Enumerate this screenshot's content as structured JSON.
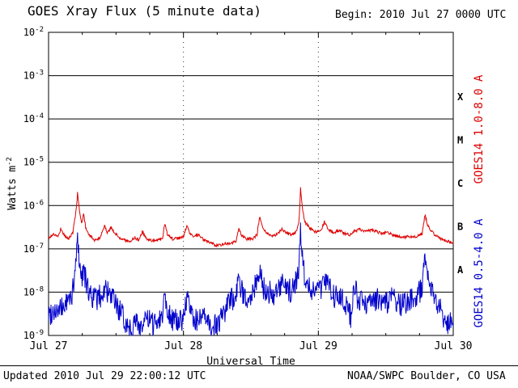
{
  "header": {
    "title": "GOES Xray Flux (5 minute data)",
    "begin": "Begin:  2010 Jul 27 0000 UTC"
  },
  "footer": {
    "updated": "Updated 2010 Jul 29 22:00:12 UTC",
    "credit": "NOAA/SWPC Boulder, CO USA"
  },
  "y_axis": {
    "label_base": "Watts m",
    "label_exp": "-2"
  },
  "x_axis": {
    "label": "Universal Time"
  },
  "right_labels": {
    "red": "GOES14 1.0-8.0 A",
    "blue": "GOES14 0.5-4.0 A"
  },
  "colors": {
    "red": "#dd0000",
    "blue": "#0000cc",
    "axis": "#000000",
    "background": "#ffffff"
  },
  "chart_data": {
    "type": "line",
    "title": "GOES Xray Flux (5 minute data)",
    "xlabel": "Universal Time",
    "ylabel": "Watts m^-2",
    "y_scale": "log",
    "ylim": [
      1e-09,
      0.01
    ],
    "xlim_days": [
      0,
      3
    ],
    "x_start": "2010 Jul 27 0000 UTC",
    "x_ticks": [
      {
        "t": 0,
        "label": "Jul 27"
      },
      {
        "t": 1,
        "label": "Jul 28"
      },
      {
        "t": 2,
        "label": "Jul 29"
      },
      {
        "t": 3,
        "label": "Jul 30"
      }
    ],
    "y_tick_exponents": [
      -2,
      -3,
      -4,
      -5,
      -6,
      -7,
      -8,
      -9
    ],
    "flare_class_bands": [
      {
        "label": "X",
        "flux": 0.000316
      },
      {
        "label": "M",
        "flux": 3.16e-05
      },
      {
        "label": "C",
        "flux": 3.16e-06
      },
      {
        "label": "B",
        "flux": 3.16e-07
      },
      {
        "label": "A",
        "flux": 3.16e-08
      }
    ],
    "grid": {
      "h_lines": "solid black at each decade",
      "v_lines": "dotted at Jul 28 and Jul 29"
    },
    "legend_position": "right-rotated",
    "series": [
      {
        "name": "GOES14 1.0-8.0 A",
        "color": "#dd0000",
        "cadence_days": 0.0035,
        "noise_decades": 0.035,
        "points": [
          [
            0.0,
            1.8e-07
          ],
          [
            0.04,
            2.2e-07
          ],
          [
            0.07,
            1.9e-07
          ],
          [
            0.09,
            2.9e-07
          ],
          [
            0.12,
            2e-07
          ],
          [
            0.15,
            1.7e-07
          ],
          [
            0.18,
            2.4e-07
          ],
          [
            0.205,
            8e-07
          ],
          [
            0.215,
            2e-06
          ],
          [
            0.23,
            7e-07
          ],
          [
            0.245,
            3.8e-07
          ],
          [
            0.26,
            6.5e-07
          ],
          [
            0.275,
            3.2e-07
          ],
          [
            0.3,
            2.1e-07
          ],
          [
            0.34,
            1.6e-07
          ],
          [
            0.38,
            1.7e-07
          ],
          [
            0.415,
            3.6e-07
          ],
          [
            0.435,
            2.4e-07
          ],
          [
            0.465,
            3.1e-07
          ],
          [
            0.49,
            2.3e-07
          ],
          [
            0.52,
            1.9e-07
          ],
          [
            0.56,
            1.6e-07
          ],
          [
            0.6,
            1.5e-07
          ],
          [
            0.64,
            1.8e-07
          ],
          [
            0.67,
            1.6e-07
          ],
          [
            0.695,
            2.5e-07
          ],
          [
            0.72,
            1.8e-07
          ],
          [
            0.76,
            1.55e-07
          ],
          [
            0.8,
            1.6e-07
          ],
          [
            0.845,
            1.7e-07
          ],
          [
            0.862,
            3.9e-07
          ],
          [
            0.88,
            2.2e-07
          ],
          [
            0.92,
            1.7e-07
          ],
          [
            0.96,
            1.75e-07
          ],
          [
            1.0,
            1.9e-07
          ],
          [
            1.025,
            3.4e-07
          ],
          [
            1.05,
            2.2e-07
          ],
          [
            1.08,
            1.9e-07
          ],
          [
            1.11,
            2.1e-07
          ],
          [
            1.15,
            1.6e-07
          ],
          [
            1.19,
            1.4e-07
          ],
          [
            1.23,
            1.25e-07
          ],
          [
            1.27,
            1.2e-07
          ],
          [
            1.31,
            1.35e-07
          ],
          [
            1.35,
            1.3e-07
          ],
          [
            1.39,
            1.5e-07
          ],
          [
            1.41,
            3e-07
          ],
          [
            1.43,
            2e-07
          ],
          [
            1.47,
            1.7e-07
          ],
          [
            1.51,
            1.7e-07
          ],
          [
            1.545,
            2.1e-07
          ],
          [
            1.565,
            5.5e-07
          ],
          [
            1.585,
            3.1e-07
          ],
          [
            1.62,
            2.2e-07
          ],
          [
            1.66,
            2e-07
          ],
          [
            1.7,
            2.2e-07
          ],
          [
            1.73,
            2.9e-07
          ],
          [
            1.76,
            2.3e-07
          ],
          [
            1.8,
            2.1e-07
          ],
          [
            1.84,
            2.5e-07
          ],
          [
            1.858,
            5e-07
          ],
          [
            1.868,
            2.6e-06
          ],
          [
            1.882,
            8e-07
          ],
          [
            1.9,
            4.2e-07
          ],
          [
            1.94,
            2.9e-07
          ],
          [
            1.98,
            2.4e-07
          ],
          [
            2.02,
            2.7e-07
          ],
          [
            2.045,
            4.2e-07
          ],
          [
            2.07,
            3e-07
          ],
          [
            2.11,
            2.3e-07
          ],
          [
            2.15,
            2.7e-07
          ],
          [
            2.19,
            2.3e-07
          ],
          [
            2.23,
            2.1e-07
          ],
          [
            2.27,
            2.6e-07
          ],
          [
            2.31,
            2.8e-07
          ],
          [
            2.35,
            2.5e-07
          ],
          [
            2.39,
            2.7e-07
          ],
          [
            2.43,
            2.5e-07
          ],
          [
            2.47,
            2.3e-07
          ],
          [
            2.51,
            2.45e-07
          ],
          [
            2.55,
            2.1e-07
          ],
          [
            2.59,
            1.95e-07
          ],
          [
            2.63,
            1.85e-07
          ],
          [
            2.67,
            1.95e-07
          ],
          [
            2.71,
            1.85e-07
          ],
          [
            2.74,
            2e-07
          ],
          [
            2.77,
            2.3e-07
          ],
          [
            2.79,
            6.2e-07
          ],
          [
            2.81,
            3.6e-07
          ],
          [
            2.84,
            2.5e-07
          ],
          [
            2.88,
            1.9e-07
          ],
          [
            2.92,
            1.65e-07
          ],
          [
            2.96,
            1.5e-07
          ],
          [
            3.0,
            1.4e-07
          ]
        ]
      },
      {
        "name": "GOES14 0.5-4.0 A",
        "color": "#0000cc",
        "cadence_days": 0.0035,
        "noise_decades": 0.28,
        "points": [
          [
            0.0,
            3e-09
          ],
          [
            0.04,
            4e-09
          ],
          [
            0.08,
            3.5e-09
          ],
          [
            0.12,
            5e-09
          ],
          [
            0.16,
            7e-09
          ],
          [
            0.19,
            1.4e-08
          ],
          [
            0.205,
            7e-08
          ],
          [
            0.215,
            1.7e-07
          ],
          [
            0.23,
            5e-08
          ],
          [
            0.245,
            2e-08
          ],
          [
            0.26,
            4e-08
          ],
          [
            0.28,
            1.4e-08
          ],
          [
            0.32,
            8e-09
          ],
          [
            0.36,
            7e-09
          ],
          [
            0.4,
            9e-09
          ],
          [
            0.42,
            1.3e-08
          ],
          [
            0.45,
            8e-09
          ],
          [
            0.49,
            6e-09
          ],
          [
            0.53,
            3.5e-09
          ],
          [
            0.57,
            2e-09
          ],
          [
            0.61,
            1.5e-09
          ],
          [
            0.65,
            2e-09
          ],
          [
            0.69,
            1.6e-09
          ],
          [
            0.73,
            2.4e-09
          ],
          [
            0.77,
            1.8e-09
          ],
          [
            0.81,
            2.4e-09
          ],
          [
            0.845,
            3e-09
          ],
          [
            0.862,
            1.1e-08
          ],
          [
            0.88,
            4e-09
          ],
          [
            0.92,
            2.4e-09
          ],
          [
            0.96,
            2e-09
          ],
          [
            1.0,
            2.6e-09
          ],
          [
            1.025,
            7e-09
          ],
          [
            1.06,
            3e-09
          ],
          [
            1.1,
            2.2e-09
          ],
          [
            1.14,
            2.6e-09
          ],
          [
            1.18,
            1.9e-09
          ],
          [
            1.22,
            1.6e-09
          ],
          [
            1.26,
            2e-09
          ],
          [
            1.3,
            3.2e-09
          ],
          [
            1.34,
            6e-09
          ],
          [
            1.38,
            8e-09
          ],
          [
            1.41,
            1.6e-08
          ],
          [
            1.44,
            9e-09
          ],
          [
            1.48,
            8e-09
          ],
          [
            1.52,
            1.1e-08
          ],
          [
            1.565,
            3.2e-08
          ],
          [
            1.59,
            1.3e-08
          ],
          [
            1.63,
            1e-08
          ],
          [
            1.67,
            9e-09
          ],
          [
            1.71,
            1.1e-08
          ],
          [
            1.73,
            1.5e-08
          ],
          [
            1.77,
            1e-08
          ],
          [
            1.81,
            1.2e-08
          ],
          [
            1.85,
            2.2e-08
          ],
          [
            1.868,
            2.9e-07
          ],
          [
            1.882,
            6e-08
          ],
          [
            1.9,
            2.2e-08
          ],
          [
            1.94,
            1.3e-08
          ],
          [
            1.98,
            1e-08
          ],
          [
            2.02,
            1.3e-08
          ],
          [
            2.045,
            2.6e-08
          ],
          [
            2.08,
            1.2e-08
          ],
          [
            2.12,
            8e-09
          ],
          [
            2.16,
            1e-08
          ],
          [
            2.2,
            6e-09
          ],
          [
            2.24,
            2.6e-09
          ],
          [
            2.265,
            1.6e-08
          ],
          [
            2.3,
            5e-09
          ],
          [
            2.34,
            6.5e-09
          ],
          [
            2.38,
            5e-09
          ],
          [
            2.42,
            7e-09
          ],
          [
            2.46,
            6e-09
          ],
          [
            2.5,
            5.5e-09
          ],
          [
            2.54,
            7e-09
          ],
          [
            2.58,
            6e-09
          ],
          [
            2.62,
            5e-09
          ],
          [
            2.66,
            6.5e-09
          ],
          [
            2.7,
            7e-09
          ],
          [
            2.74,
            9e-09
          ],
          [
            2.77,
            1.3e-08
          ],
          [
            2.79,
            9.5e-08
          ],
          [
            2.81,
            2.6e-08
          ],
          [
            2.84,
            1.1e-08
          ],
          [
            2.88,
            6e-09
          ],
          [
            2.92,
            3e-09
          ],
          [
            2.96,
            2e-09
          ],
          [
            3.0,
            1.6e-09
          ]
        ]
      }
    ]
  }
}
